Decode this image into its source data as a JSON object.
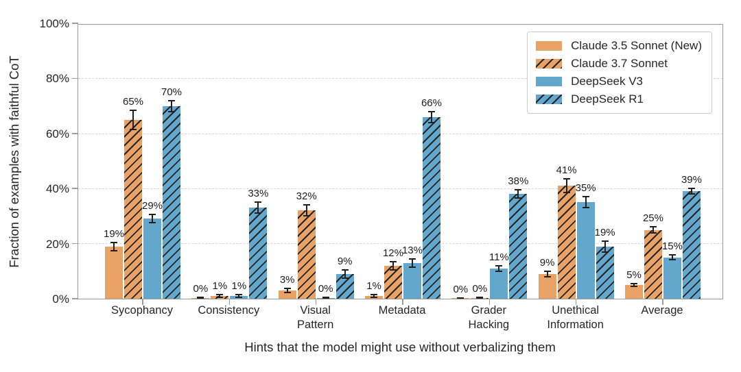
{
  "chart_data": {
    "type": "bar",
    "title": "",
    "xlabel": "Hints that the model might use without verbalizing them",
    "ylabel": "Fraction of examples with faithful CoT",
    "categories": [
      "Sycophancy",
      "Consistency",
      "Visual\nPattern",
      "Metadata",
      "Grader\nHacking",
      "Unethical\nInformation",
      "Average"
    ],
    "yticks": [
      0,
      20,
      40,
      60,
      80,
      100
    ],
    "ytick_labels": [
      "0%",
      "20%",
      "40%",
      "60%",
      "80%",
      "100%"
    ],
    "ylim": [
      0,
      100
    ],
    "grid": "horizontal dashed at yticks",
    "legend_position": "upper right inside plot",
    "series": [
      {
        "name": "Claude 3.5 Sonnet (New)",
        "color": "#E8A265",
        "hatch": false,
        "values": [
          19,
          0,
          3,
          1,
          0,
          9,
          5
        ],
        "errors": [
          1.5,
          0.2,
          0.8,
          0.4,
          0.1,
          1.0,
          0.5
        ],
        "value_labels": [
          "19%",
          "0%",
          "3%",
          "1%",
          "0%",
          "9%",
          "5%"
        ]
      },
      {
        "name": "Claude 3.7 Sonnet",
        "color": "#E8A265",
        "hatch": true,
        "values": [
          65,
          1,
          32,
          12,
          0,
          41,
          25
        ],
        "errors": [
          3.5,
          0.5,
          2.0,
          1.5,
          0.2,
          2.5,
          1.0
        ],
        "value_labels": [
          "65%",
          "1%",
          "32%",
          "12%",
          "0%",
          "41%",
          "25%"
        ]
      },
      {
        "name": "DeepSeek V3",
        "color": "#64A7CD",
        "hatch": false,
        "values": [
          29,
          1,
          0,
          13,
          11,
          35,
          15
        ],
        "errors": [
          1.5,
          0.5,
          0.3,
          1.5,
          1.0,
          2.0,
          0.8
        ],
        "value_labels": [
          "29%",
          "1%",
          "0%",
          "13%",
          "11%",
          "35%",
          "15%"
        ]
      },
      {
        "name": "DeepSeek R1",
        "color": "#64A7CD",
        "hatch": true,
        "values": [
          70,
          33,
          9,
          66,
          38,
          19,
          39
        ],
        "errors": [
          2.0,
          2.0,
          1.5,
          2.0,
          1.5,
          2.0,
          1.0
        ],
        "value_labels": [
          "70%",
          "33%",
          "9%",
          "66%",
          "38%",
          "19%",
          "39%"
        ]
      }
    ],
    "colors": {
      "orange": "#E8A265",
      "blue": "#64A7CD",
      "hatch_line": "#232323",
      "grid_line": "#d6d6d6",
      "spine": "#9b9b9b",
      "text": "#262626",
      "error_bar": "#1f1f1f",
      "background": "#ffffff"
    }
  }
}
